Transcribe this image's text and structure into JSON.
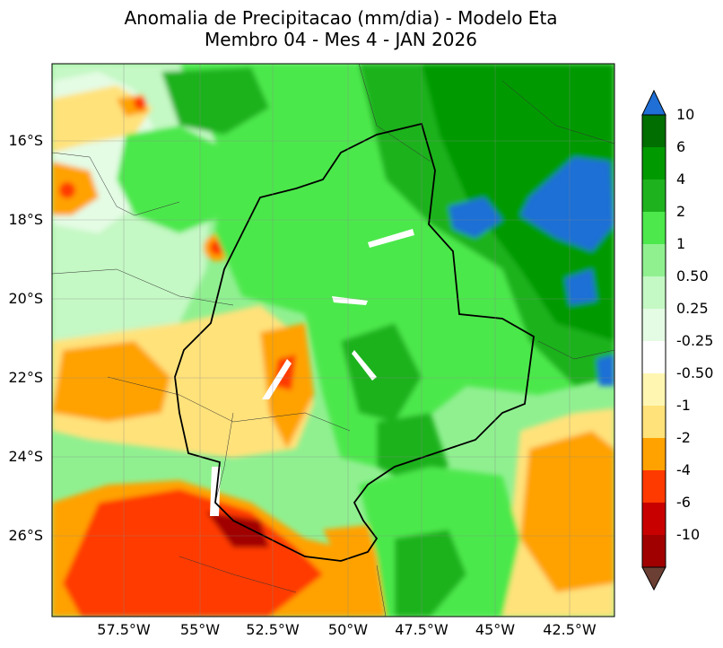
{
  "title": {
    "line1": "Anomalia de Precipitacao (mm/dia) - Modelo Eta",
    "line2": "Membro 04 - Mes 4 - JAN 2026"
  },
  "axes": {
    "lat_labels": [
      "16°S",
      "18°S",
      "20°S",
      "22°S",
      "24°S",
      "26°S"
    ],
    "lon_labels": [
      "57.5°W",
      "55°W",
      "52.5°W",
      "50°W",
      "47.5°W",
      "45°W",
      "42.5°W"
    ]
  },
  "colorbar": {
    "labels": [
      "10",
      "6",
      "4",
      "2",
      "1",
      "0.50",
      "0.25",
      "-0.25",
      "-0.50",
      "-1",
      "-2",
      "-4",
      "-6",
      "-10"
    ],
    "colors": [
      "#006e00",
      "#009a00",
      "#1fb21f",
      "#4ce84c",
      "#90f090",
      "#c4f8c4",
      "#e4fbe4",
      "#ffffff",
      "#fff6b2",
      "#ffe27a",
      "#ffa200",
      "#ff3a00",
      "#c80000",
      "#a00000"
    ],
    "over_color": "#1f6fd6",
    "under_color": "#6b3f33"
  }
}
